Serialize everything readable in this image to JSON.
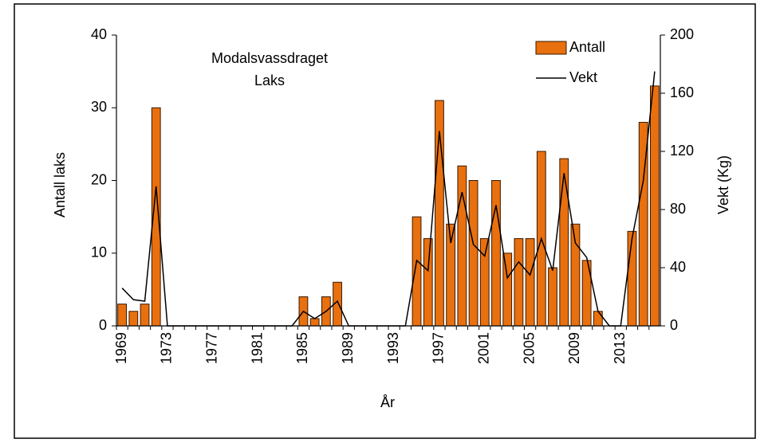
{
  "chart_data": {
    "type": "bar-line",
    "title": "Modalsvassdraget",
    "subtitle": "Laks",
    "xlabel": "År",
    "ylabel": "Antall laks",
    "y2label": "Vekt (Kg)",
    "categories": [
      "1969",
      null,
      null,
      null,
      "1973",
      null,
      null,
      null,
      "1977",
      null,
      null,
      null,
      "1981",
      null,
      null,
      null,
      "1985",
      null,
      null,
      null,
      "1989",
      null,
      null,
      null,
      "1993",
      null,
      null,
      null,
      "1997",
      null,
      null,
      null,
      "2001",
      null,
      null,
      null,
      "2005",
      null,
      null,
      null,
      "2009",
      null,
      null,
      null,
      "2013",
      null,
      null,
      null
    ],
    "series": [
      {
        "name": "Antall",
        "type": "bar",
        "color": "#e8700f",
        "axis": "y",
        "values": [
          3,
          2,
          3,
          30,
          0,
          0,
          0,
          0,
          0,
          0,
          0,
          0,
          0,
          0,
          0,
          0,
          4,
          1,
          4,
          6,
          0,
          0,
          0,
          0,
          0,
          0,
          15,
          12,
          31,
          14,
          22,
          20,
          12,
          20,
          10,
          12,
          12,
          24,
          8,
          23,
          14,
          9,
          2,
          0,
          0,
          13,
          28,
          33
        ]
      },
      {
        "name": "Vekt",
        "type": "line",
        "color": "#000000",
        "axis": "y2",
        "values": [
          26,
          18,
          17,
          96,
          0,
          0,
          0,
          0,
          0,
          0,
          0,
          0,
          0,
          0,
          0,
          0,
          10,
          5,
          10,
          17,
          0,
          0,
          0,
          0,
          0,
          0,
          45,
          38,
          134,
          57,
          92,
          56,
          48,
          83,
          33,
          44,
          35,
          60,
          38,
          105,
          57,
          47,
          10,
          0,
          0,
          60,
          100,
          175
        ]
      }
    ],
    "ylim": [
      0,
      40
    ],
    "yticks": [
      0,
      10,
      20,
      30,
      40
    ],
    "y2lim": [
      0,
      200
    ],
    "y2ticks": [
      0,
      40,
      80,
      120,
      160,
      200
    ],
    "legend": "upper right",
    "grid": false
  }
}
